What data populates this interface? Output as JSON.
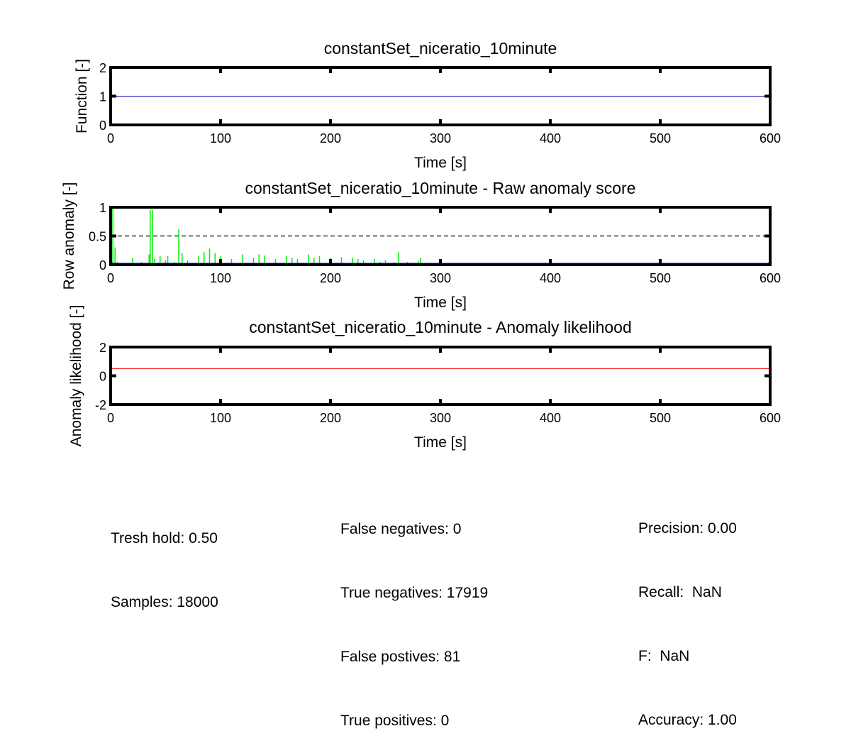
{
  "chart_data": [
    {
      "type": "line",
      "title": "constantSet_niceratio_10minute",
      "xlabel": "Time [s]",
      "ylabel": "Function [-]",
      "xlim": [
        0,
        600
      ],
      "ylim": [
        0,
        2
      ],
      "xticks": [
        "0",
        "100",
        "200",
        "300",
        "400",
        "500",
        "600"
      ],
      "yticks": [
        "0",
        "1",
        "2"
      ],
      "series": [
        {
          "color": "#0000aa",
          "x": [
            0,
            600
          ],
          "y": [
            1,
            1
          ]
        }
      ]
    },
    {
      "type": "line",
      "title": "constantSet_niceratio_10minute - Raw anomaly score",
      "xlabel": "Time [s]",
      "ylabel": "Row anomaly [-]",
      "xlim": [
        0,
        600
      ],
      "ylim": [
        0,
        1
      ],
      "xticks": [
        "0",
        "100",
        "200",
        "300",
        "400",
        "500",
        "600"
      ],
      "yticks": [
        "0",
        "0.5",
        "1"
      ],
      "threshold": 0.5,
      "series": [
        {
          "color": "#00ee00",
          "x": [
            0,
            2,
            4,
            6,
            20,
            28,
            35,
            36,
            38,
            40,
            45,
            50,
            52,
            58,
            62,
            65,
            70,
            80,
            85,
            90,
            95,
            100,
            110,
            120,
            130,
            135,
            140,
            150,
            160,
            165,
            170,
            180,
            185,
            190,
            200,
            210,
            220,
            225,
            230,
            240,
            245,
            250,
            258,
            262,
            270,
            280,
            282,
            300,
            400,
            500,
            600
          ],
          "y": [
            0,
            1.0,
            0.3,
            0.05,
            0.12,
            0.05,
            0.18,
            0.95,
            0.95,
            0.1,
            0.15,
            0.08,
            0.15,
            0.05,
            0.62,
            0.2,
            0.08,
            0.15,
            0.22,
            0.28,
            0.2,
            0.15,
            0.1,
            0.18,
            0.12,
            0.18,
            0.16,
            0.1,
            0.15,
            0.12,
            0.1,
            0.18,
            0.12,
            0.15,
            0.12,
            0.13,
            0.12,
            0.1,
            0.08,
            0.1,
            0.05,
            0.08,
            0.04,
            0.22,
            0.05,
            0.06,
            0.12,
            0.02,
            0.02,
            0.02,
            0.02
          ]
        },
        {
          "color": "#0000cc",
          "x": [
            0,
            600
          ],
          "y": [
            0,
            0
          ]
        }
      ]
    },
    {
      "type": "line",
      "title": "constantSet_niceratio_10minute - Anomaly likelihood",
      "xlabel": "Time [s]",
      "ylabel": "Anomaly likelihood [-]",
      "xlim": [
        0,
        600
      ],
      "ylim": [
        -2,
        2
      ],
      "xticks": [
        "0",
        "100",
        "200",
        "300",
        "400",
        "500",
        "600"
      ],
      "yticks": [
        "-2",
        "0",
        "2"
      ],
      "series": [
        {
          "color": "#ff0000",
          "x": [
            0,
            600
          ],
          "y": [
            0.5,
            0.5
          ]
        }
      ]
    }
  ],
  "stats": {
    "threshold": "Tresh hold: 0.50",
    "samples": "Samples: 18000",
    "false_negatives": "False negatives: 0",
    "true_negatives": "True negatives: 17919",
    "false_positives": "False postives: 81",
    "true_positives": "True positives: 0",
    "precision": "Precision: 0.00",
    "recall": "Recall:  NaN",
    "f_score": "F:  NaN",
    "accuracy": "Accuracy: 1.00"
  }
}
